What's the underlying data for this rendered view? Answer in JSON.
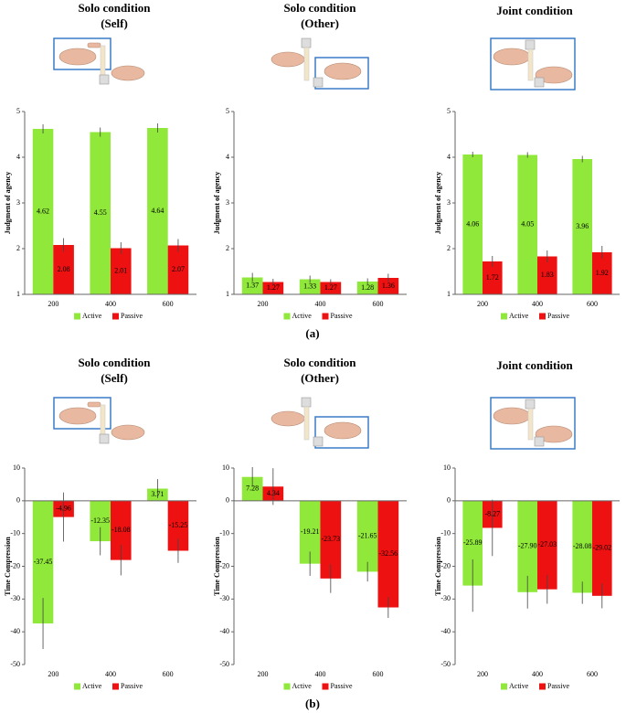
{
  "panel_labels": [
    "(a)",
    "(b)"
  ],
  "chart_data": [
    {
      "type": "bar",
      "title": [
        "Solo condition",
        "(Self)"
      ],
      "y_label": "Judgment of agency",
      "categories": [
        "200",
        "400",
        "600"
      ],
      "ylim": [
        1,
        5
      ],
      "yticks": [
        1,
        2,
        3,
        4,
        5
      ],
      "series": [
        {
          "name": "Active",
          "color": "#8fe83a",
          "values": [
            4.62,
            4.55,
            4.64
          ],
          "errors": [
            0.1,
            0.1,
            0.1
          ]
        },
        {
          "name": "Passive",
          "color": "#ee1111",
          "values": [
            2.08,
            2.01,
            2.07
          ],
          "errors": [
            0.15,
            0.13,
            0.14
          ]
        }
      ]
    },
    {
      "type": "bar",
      "title": [
        "Solo condition",
        "(Other)"
      ],
      "y_label": "Judgment of agency",
      "categories": [
        "200",
        "400",
        "600"
      ],
      "ylim": [
        1,
        5
      ],
      "yticks": [
        1,
        2,
        3,
        4,
        5
      ],
      "series": [
        {
          "name": "Active",
          "color": "#8fe83a",
          "values": [
            1.37,
            1.33,
            1.28
          ],
          "errors": [
            0.1,
            0.08,
            0.07
          ]
        },
        {
          "name": "Passive",
          "color": "#ee1111",
          "values": [
            1.27,
            1.27,
            1.36
          ],
          "errors": [
            0.07,
            0.06,
            0.09
          ]
        }
      ]
    },
    {
      "type": "bar",
      "title": [
        "Joint condition"
      ],
      "y_label": "Judgment of agency",
      "categories": [
        "200",
        "400",
        "600"
      ],
      "ylim": [
        1,
        5
      ],
      "yticks": [
        1,
        2,
        3,
        4,
        5
      ],
      "series": [
        {
          "name": "Active",
          "color": "#8fe83a",
          "values": [
            4.06,
            4.05,
            3.96
          ],
          "errors": [
            0.06,
            0.06,
            0.07
          ]
        },
        {
          "name": "Passive",
          "color": "#ee1111",
          "values": [
            1.72,
            1.83,
            1.92
          ],
          "errors": [
            0.12,
            0.13,
            0.14
          ]
        }
      ]
    },
    {
      "type": "bar",
      "title": [
        "Solo condition",
        "(Self)"
      ],
      "y_label": "Time Compression",
      "categories": [
        "200",
        "400",
        "600"
      ],
      "ylim": [
        -50,
        10
      ],
      "yticks": [
        -50,
        -40,
        -30,
        -20,
        -10,
        0,
        10
      ],
      "series": [
        {
          "name": "Active",
          "color": "#8fe83a",
          "values": [
            -37.45,
            -12.35,
            3.71
          ],
          "errors": [
            7.8,
            4.3,
            2.9
          ]
        },
        {
          "name": "Passive",
          "color": "#ee1111",
          "values": [
            -4.96,
            -18.08,
            -15.25
          ],
          "errors": [
            7.5,
            4.7,
            3.7
          ]
        }
      ]
    },
    {
      "type": "bar",
      "title": [
        "Solo condition",
        "(Other)"
      ],
      "y_label": "Time Compression",
      "categories": [
        "200",
        "400",
        "600"
      ],
      "ylim": [
        -50,
        10
      ],
      "yticks": [
        -50,
        -40,
        -30,
        -20,
        -10,
        0,
        10
      ],
      "series": [
        {
          "name": "Active",
          "color": "#8fe83a",
          "values": [
            7.28,
            -19.21,
            -21.65
          ],
          "errors": [
            3,
            3.7,
            3
          ]
        },
        {
          "name": "Passive",
          "color": "#ee1111",
          "values": [
            4.34,
            -23.73,
            -32.56
          ],
          "errors": [
            5.6,
            4.4,
            3.2
          ]
        }
      ]
    },
    {
      "type": "bar",
      "title": [
        "Joint condition"
      ],
      "y_label": "Time Compression",
      "categories": [
        "200",
        "400",
        "600"
      ],
      "ylim": [
        -50,
        10
      ],
      "yticks": [
        -50,
        -40,
        -30,
        -20,
        -10,
        0,
        10
      ],
      "series": [
        {
          "name": "Active",
          "color": "#8fe83a",
          "values": [
            -25.89,
            -27.9,
            -28.08
          ],
          "value_labels": [
            "-25.89",
            "-27.90",
            "-28.08"
          ],
          "errors": [
            8,
            5,
            3.4
          ]
        },
        {
          "name": "Passive",
          "color": "#ee1111",
          "values": [
            -8.27,
            -27.03,
            -29.02
          ],
          "errors": [
            8.6,
            4.4,
            3.8
          ]
        }
      ]
    }
  ]
}
